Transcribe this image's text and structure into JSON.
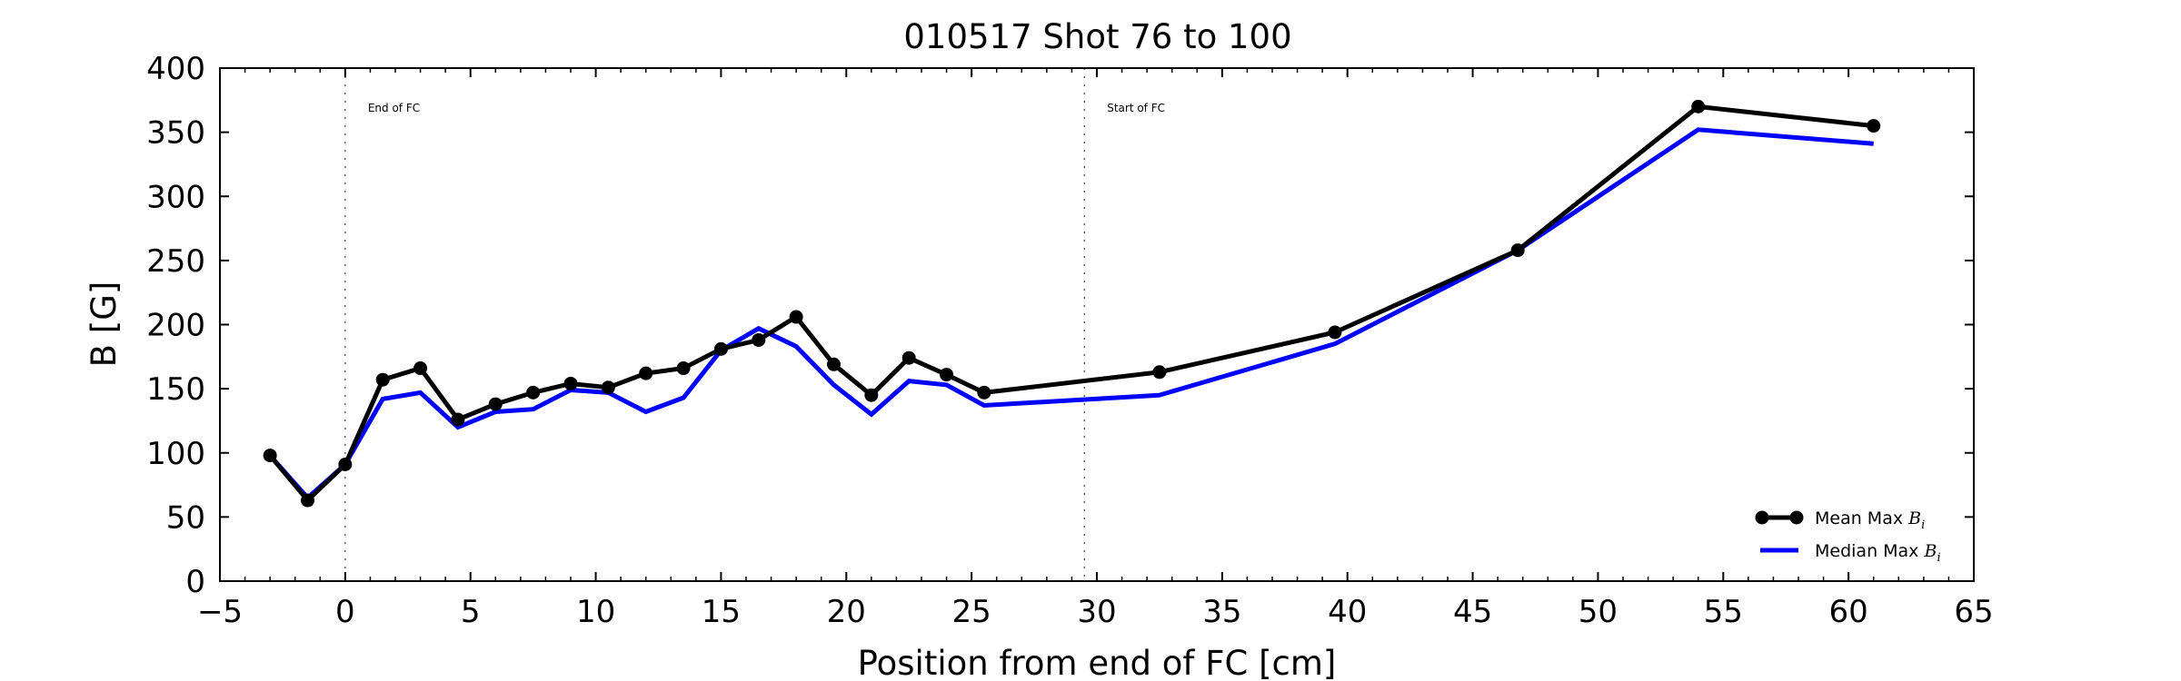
{
  "chart_data": {
    "type": "line",
    "title": "010517 Shot 76 to 100",
    "xlabel": "Position from end of FC [cm]",
    "ylabel": "B [G]",
    "xlim": [
      -5,
      65
    ],
    "ylim": [
      0,
      400
    ],
    "xticks": [
      -5,
      0,
      5,
      10,
      15,
      20,
      25,
      30,
      35,
      40,
      45,
      50,
      55,
      60,
      65
    ],
    "yticks": [
      0,
      50,
      100,
      150,
      200,
      250,
      300,
      350,
      400
    ],
    "xtick_labels": [
      "−5",
      "0",
      "5",
      "10",
      "15",
      "20",
      "25",
      "30",
      "35",
      "40",
      "45",
      "50",
      "55",
      "60",
      "65"
    ],
    "ytick_labels": [
      "0",
      "50",
      "100",
      "150",
      "200",
      "250",
      "300",
      "350",
      "400"
    ],
    "grid": false,
    "legend_position": "lower-right",
    "vlines": [
      {
        "x": 0,
        "label": "End of FC"
      },
      {
        "x": 29.5,
        "label": "Start of FC"
      }
    ],
    "series": [
      {
        "name": "Mean Max",
        "name_sub": "B",
        "name_sub_i": "i",
        "color": "#000000",
        "markers": true,
        "x": [
          -3,
          -1.5,
          0,
          1.5,
          3,
          4.5,
          6,
          7.5,
          9,
          10.5,
          12,
          13.5,
          15,
          16.5,
          18,
          19.5,
          21,
          22.5,
          24,
          25.5,
          32.5,
          39.5,
          46.8,
          54,
          61
        ],
        "y": [
          98,
          63,
          91,
          157,
          166,
          126,
          138,
          147,
          154,
          151,
          162,
          166,
          181,
          188,
          206,
          169,
          145,
          174,
          161,
          147,
          163,
          194,
          258,
          370,
          355
        ]
      },
      {
        "name": "Median Max",
        "name_sub": "B",
        "name_sub_i": "i",
        "color": "#0000ff",
        "markers": false,
        "x": [
          -3,
          -1.5,
          0,
          1.5,
          3,
          4.5,
          6,
          7.5,
          9,
          10.5,
          12,
          13.5,
          15,
          16.5,
          18,
          19.5,
          21,
          22.5,
          24,
          25.5,
          32.5,
          39.5,
          46.8,
          54,
          61
        ],
        "y": [
          98,
          65,
          91,
          142,
          147,
          120,
          132,
          134,
          149,
          147,
          132,
          143,
          180,
          197,
          183,
          153,
          130,
          156,
          153,
          137,
          145,
          185,
          258,
          352,
          341
        ]
      }
    ]
  }
}
